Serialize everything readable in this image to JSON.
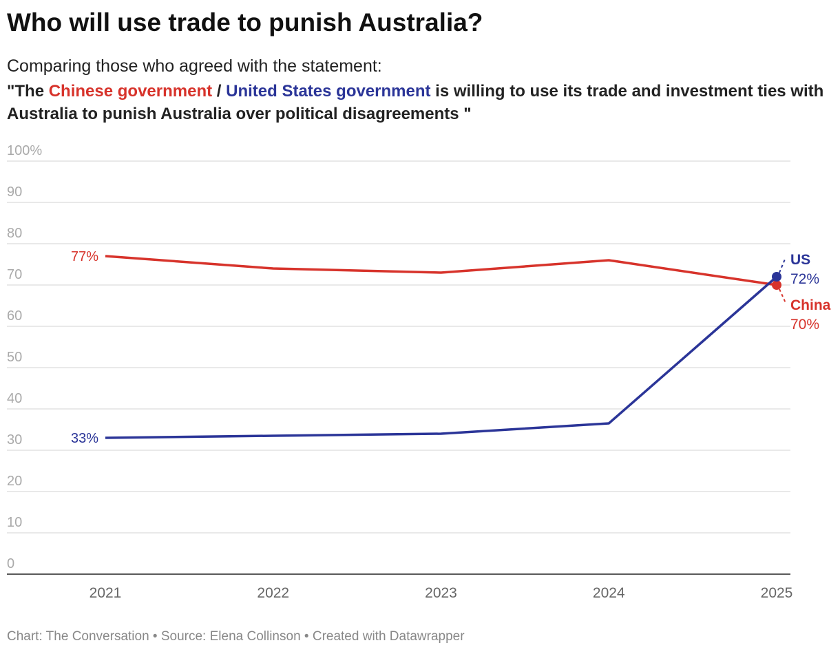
{
  "title": "Who will use trade to punish Australia?",
  "subtitle": "Comparing those who agreed with the statement:",
  "statement": {
    "prefix": "\"The ",
    "china": "Chinese government",
    "sep": " / ",
    "us": "United States government",
    "suffix": " is willing to use its trade and investment ties with Australia to punish Australia over political disagreements \""
  },
  "footer": "Chart: The Conversation • Source: Elena Collinson • Created with Datawrapper",
  "colors": {
    "china": "#d7332b",
    "us": "#2b3598",
    "grid": "#e2e2e2",
    "tick": "#999999"
  },
  "chart_data": {
    "type": "line",
    "x": [
      "2021",
      "2022",
      "2023",
      "2024",
      "2025"
    ],
    "ylim": [
      0,
      100
    ],
    "yticks": [
      "0",
      "10",
      "20",
      "30",
      "40",
      "50",
      "60",
      "70",
      "80",
      "90",
      "100%"
    ],
    "grid": true,
    "series": [
      {
        "name": "China",
        "values": [
          77,
          74,
          73,
          76,
          70
        ],
        "start_label": "77%",
        "end_label": "70%"
      },
      {
        "name": "US",
        "values": [
          33,
          33.5,
          34,
          36.5,
          72
        ],
        "start_label": "33%",
        "end_label": "72%"
      }
    ]
  }
}
